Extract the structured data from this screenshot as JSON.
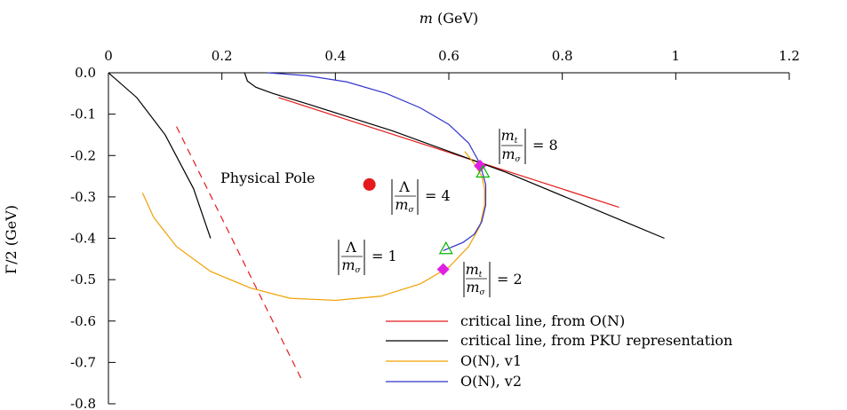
{
  "chart_data": {
    "type": "line",
    "xlabel": "m (GeV)",
    "ylabel": "Γ/2 (GeV)",
    "xlim": [
      0,
      1.2
    ],
    "ylim": [
      -0.8,
      0
    ],
    "x_ticks": [
      "0",
      "0.2",
      "0.4",
      "0.6",
      "0.8",
      "1",
      "1.2"
    ],
    "y_ticks": [
      "0.0",
      "-0.1",
      "-0.2",
      "-0.3",
      "-0.4",
      "-0.5",
      "-0.6",
      "-0.7",
      "-0.8"
    ],
    "x_tick_values": [
      0,
      0.2,
      0.4,
      0.6,
      0.8,
      1.0,
      1.2
    ],
    "y_tick_values": [
      0,
      -0.1,
      -0.2,
      -0.3,
      -0.4,
      -0.5,
      -0.6,
      -0.7,
      -0.8
    ],
    "x_axis_position": "top",
    "grid": false,
    "legend_position": "bottom-right",
    "series": [
      {
        "name": "critical line, from O(N)",
        "color": "#e41a1c",
        "style": "solid",
        "x": [
          0.3,
          0.9
        ],
        "y": [
          -0.06,
          -0.325
        ]
      },
      {
        "name": "critical line, from PKU representation",
        "color": "#000000",
        "style": "solid",
        "x": [
          0.24,
          0.245,
          0.26,
          0.29,
          0.35,
          0.5,
          0.7,
          0.98
        ],
        "y": [
          0.0,
          -0.02,
          -0.035,
          -0.05,
          -0.075,
          -0.14,
          -0.24,
          -0.4
        ]
      },
      {
        "name": "O(N), v1",
        "color": "#f0a000",
        "style": "solid",
        "x": [
          0.06,
          0.08,
          0.12,
          0.18,
          0.25,
          0.32,
          0.4,
          0.48,
          0.55,
          0.6,
          0.635,
          0.655,
          0.663,
          0.663,
          0.658,
          0.645,
          0.628
        ],
        "y": [
          -0.29,
          -0.35,
          -0.42,
          -0.48,
          -0.52,
          -0.545,
          -0.55,
          -0.54,
          -0.51,
          -0.47,
          -0.42,
          -0.37,
          -0.32,
          -0.28,
          -0.25,
          -0.22,
          -0.19
        ]
      },
      {
        "name": "O(N), v2",
        "color": "#3333cc",
        "style": "solid",
        "x": [
          0.28,
          0.35,
          0.42,
          0.49,
          0.55,
          0.6,
          0.635,
          0.655,
          0.665,
          0.665,
          0.658,
          0.645,
          0.625,
          0.59
        ],
        "y": [
          0.0,
          -0.007,
          -0.022,
          -0.05,
          -0.085,
          -0.125,
          -0.17,
          -0.22,
          -0.27,
          -0.32,
          -0.36,
          -0.39,
          -0.41,
          -0.43
        ]
      },
      {
        "name": "",
        "color": "#000000",
        "style": "solid",
        "x": [
          0.0,
          0.05,
          0.1,
          0.15,
          0.18
        ],
        "y": [
          0.0,
          -0.06,
          -0.15,
          -0.28,
          -0.4
        ]
      },
      {
        "name": "",
        "color": "#e41a1c",
        "style": "dashed",
        "x": [
          0.12,
          0.34
        ],
        "y": [
          -0.13,
          -0.74
        ]
      }
    ],
    "points": [
      {
        "label": "Physical Pole",
        "x": 0.46,
        "y": -0.27,
        "marker": "circle",
        "color": "#e41a1c"
      },
      {
        "label": "",
        "x": 0.655,
        "y": -0.225,
        "marker": "diamond",
        "color": "#e020e0"
      },
      {
        "label": "",
        "x": 0.59,
        "y": -0.475,
        "marker": "diamond",
        "color": "#e020e0"
      },
      {
        "label": "",
        "x": 0.66,
        "y": -0.24,
        "marker": "triangle",
        "color": "#00bb00"
      },
      {
        "label": "",
        "x": 0.595,
        "y": -0.425,
        "marker": "triangle",
        "color": "#00bb00"
      }
    ],
    "annotations": [
      {
        "id": "mt8",
        "text_num": "m_t",
        "text_den": "m_σ",
        "value": "8"
      },
      {
        "id": "lam4",
        "text_num": "Λ",
        "text_den": "m_σ",
        "value": "4"
      },
      {
        "id": "lam1",
        "text_num": "Λ",
        "text_den": "m_σ",
        "value": "1"
      },
      {
        "id": "mt2",
        "text_num": "m_t",
        "text_den": "m_σ",
        "value": "2"
      }
    ]
  }
}
